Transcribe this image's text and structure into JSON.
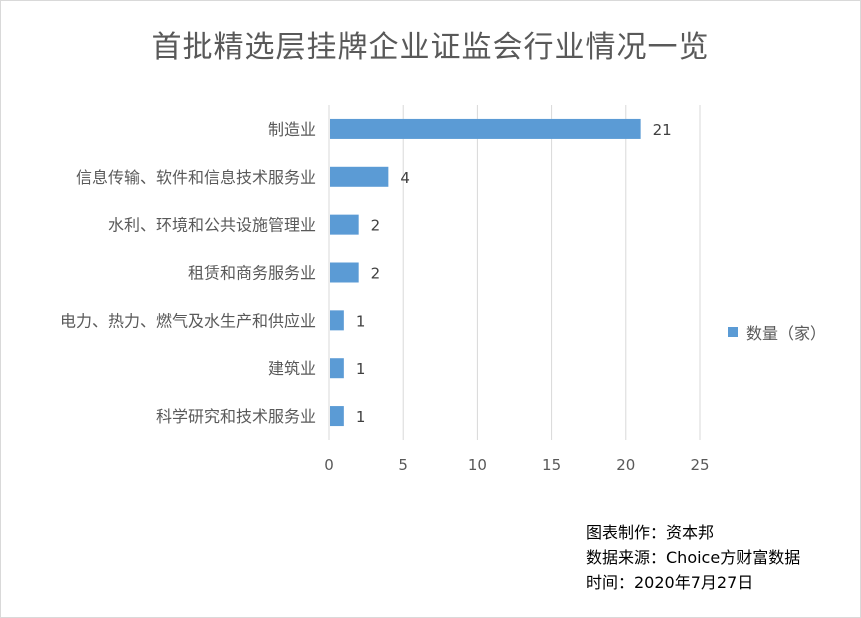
{
  "chart_data": {
    "type": "bar",
    "orientation": "horizontal",
    "title": "首批精选层挂牌企业证监会行业情况一览",
    "categories": [
      "制造业",
      "信息传输、软件和信息技术服务业",
      "水利、环境和公共设施管理业",
      "租赁和商务服务业",
      "电力、热力、燃气及水生产和供应业",
      "建筑业",
      "科学研究和技术服务业"
    ],
    "series": [
      {
        "name": "数量（家）",
        "values": [
          21,
          4,
          2,
          2,
          1,
          1,
          1
        ],
        "color": "#5b9bd5"
      }
    ],
    "xlim": [
      0,
      25
    ],
    "xticks": [
      0,
      5,
      10,
      15,
      20,
      25
    ],
    "grid": true,
    "legend_position": "right",
    "data_labels": true
  },
  "source_notes": {
    "maker": "图表制作：资本邦",
    "data_source": "数据来源：Choice方财富数据",
    "time": "时间：2020年7月27日"
  },
  "colors": {
    "bar": "#5b9bd5",
    "grid": "#d9d9d9",
    "text": "#595959"
  }
}
